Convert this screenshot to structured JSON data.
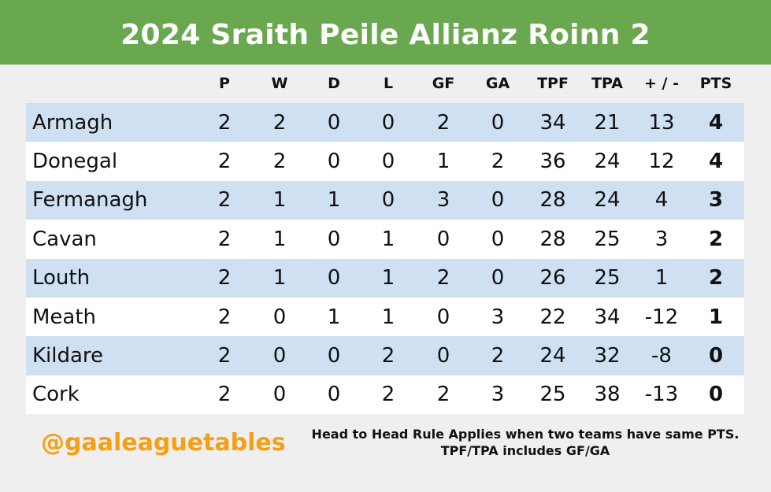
{
  "title": "2024 Sraith Peile Allianz Roinn 2",
  "columns": {
    "p": "P",
    "w": "W",
    "d": "D",
    "l": "L",
    "gf": "GF",
    "ga": "GA",
    "tpf": "TPF",
    "tpa": "TPA",
    "pm": "+ / -",
    "pts": "PTS"
  },
  "rows": [
    {
      "team": "Armagh",
      "p": "2",
      "w": "2",
      "d": "0",
      "l": "0",
      "gf": "2",
      "ga": "0",
      "tpf": "34",
      "tpa": "21",
      "pm": "13",
      "pts": "4"
    },
    {
      "team": "Donegal",
      "p": "2",
      "w": "2",
      "d": "0",
      "l": "0",
      "gf": "1",
      "ga": "2",
      "tpf": "36",
      "tpa": "24",
      "pm": "12",
      "pts": "4"
    },
    {
      "team": "Fermanagh",
      "p": "2",
      "w": "1",
      "d": "1",
      "l": "0",
      "gf": "3",
      "ga": "0",
      "tpf": "28",
      "tpa": "24",
      "pm": "4",
      "pts": "3"
    },
    {
      "team": "Cavan",
      "p": "2",
      "w": "1",
      "d": "0",
      "l": "1",
      "gf": "0",
      "ga": "0",
      "tpf": "28",
      "tpa": "25",
      "pm": "3",
      "pts": "2"
    },
    {
      "team": "Louth",
      "p": "2",
      "w": "1",
      "d": "0",
      "l": "1",
      "gf": "2",
      "ga": "0",
      "tpf": "26",
      "tpa": "25",
      "pm": "1",
      "pts": "2"
    },
    {
      "team": "Meath",
      "p": "2",
      "w": "0",
      "d": "1",
      "l": "1",
      "gf": "0",
      "ga": "3",
      "tpf": "22",
      "tpa": "34",
      "pm": "-12",
      "pts": "1"
    },
    {
      "team": "Kildare",
      "p": "2",
      "w": "0",
      "d": "0",
      "l": "2",
      "gf": "0",
      "ga": "2",
      "tpf": "24",
      "tpa": "32",
      "pm": "-8",
      "pts": "0"
    },
    {
      "team": "Cork",
      "p": "2",
      "w": "0",
      "d": "0",
      "l": "2",
      "gf": "2",
      "ga": "3",
      "tpf": "25",
      "tpa": "38",
      "pm": "-13",
      "pts": "0"
    }
  ],
  "footer": {
    "handle": "@gaaleaguetables",
    "note": "Head to Head Rule Applies when two teams have same PTS. TPF/TPA includes GF/GA"
  },
  "colors": {
    "banner": "#6aa84f",
    "row_odd": "#cfe0f2",
    "row_even": "#ffffff",
    "handle": "#f5a014"
  }
}
